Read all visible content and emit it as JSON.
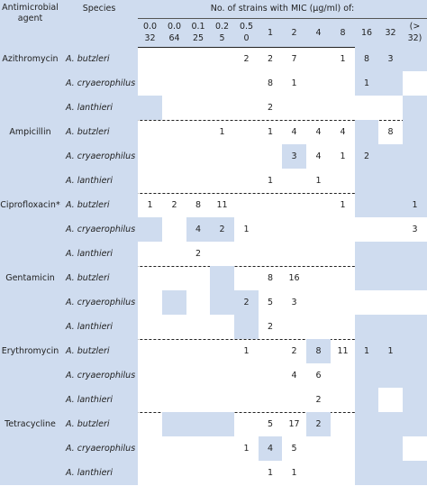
{
  "header": {
    "agent": "Antimicrobial\nagent",
    "species": "Species",
    "mic_title": "No. of strains with MIC (μg/ml) of:",
    "columns": [
      "0.0\n32",
      "0.0\n64",
      "0.1\n25",
      "0.2\n5",
      "0.5\n0",
      "1",
      "2",
      "4",
      "8",
      "16",
      "32",
      "(>\n32)"
    ]
  },
  "groups": [
    {
      "agent": "Azithromycin",
      "rows": [
        {
          "species": "A. butzleri",
          "values": [
            "",
            "",
            "",
            "",
            "2",
            "2",
            "7",
            "",
            "1",
            "8",
            "3",
            ""
          ],
          "shaded": [
            false,
            false,
            false,
            false,
            false,
            false,
            false,
            false,
            false,
            true,
            true,
            true
          ]
        },
        {
          "species": "A. cryaerophilus",
          "values": [
            "",
            "",
            "",
            "",
            "",
            "8",
            "1",
            "",
            "",
            "1",
            "",
            ""
          ],
          "shaded": [
            false,
            false,
            false,
            false,
            false,
            false,
            false,
            false,
            false,
            true,
            true,
            false
          ]
        },
        {
          "species": "A. lanthieri",
          "values": [
            "",
            "",
            "",
            "",
            "",
            "2",
            "",
            "",
            "",
            "",
            "",
            ""
          ],
          "shaded": [
            true,
            false,
            false,
            false,
            false,
            false,
            false,
            false,
            false,
            false,
            false,
            true
          ]
        }
      ]
    },
    {
      "agent": "Ampicillin",
      "rows": [
        {
          "species": "A. butzleri",
          "values": [
            "",
            "",
            "",
            "1",
            "",
            "1",
            "4",
            "4",
            "4",
            "",
            "8",
            ""
          ],
          "shaded": [
            false,
            false,
            false,
            false,
            false,
            false,
            false,
            false,
            false,
            true,
            false,
            true
          ]
        },
        {
          "species": "A. cryaerophilus",
          "values": [
            "",
            "",
            "",
            "",
            "",
            "",
            "3",
            "4",
            "1",
            "2",
            "",
            ""
          ],
          "shaded": [
            false,
            false,
            false,
            false,
            false,
            false,
            true,
            false,
            false,
            true,
            true,
            true
          ]
        },
        {
          "species": "A. lanthieri",
          "values": [
            "",
            "",
            "",
            "",
            "",
            "1",
            "",
            "1",
            "",
            "",
            "",
            ""
          ],
          "shaded": [
            false,
            false,
            false,
            false,
            false,
            false,
            false,
            false,
            false,
            true,
            true,
            true
          ]
        }
      ]
    },
    {
      "agent": "Ciprofloxacin*",
      "rows": [
        {
          "species": "A. butzleri",
          "values": [
            "1",
            "2",
            "8",
            "11",
            "",
            "",
            "",
            "",
            "1",
            "",
            "",
            "1"
          ],
          "shaded": [
            false,
            false,
            false,
            false,
            false,
            false,
            false,
            false,
            false,
            true,
            true,
            true
          ]
        },
        {
          "species": "A. cryaerophilus",
          "values": [
            "",
            "",
            "4",
            "2",
            "1",
            "",
            "",
            "",
            "",
            "",
            "",
            "3"
          ],
          "shaded": [
            true,
            false,
            true,
            true,
            false,
            false,
            false,
            false,
            false,
            false,
            false,
            false
          ]
        },
        {
          "species": "A. lanthieri",
          "values": [
            "",
            "",
            "2",
            "",
            "",
            "",
            "",
            "",
            "",
            "",
            "",
            ""
          ],
          "shaded": [
            false,
            false,
            false,
            false,
            false,
            false,
            false,
            false,
            false,
            true,
            true,
            true
          ]
        }
      ]
    },
    {
      "agent": "Gentamicin",
      "rows": [
        {
          "species": "A. butzleri",
          "values": [
            "",
            "",
            "",
            "",
            "",
            "8",
            "16",
            "",
            "",
            "",
            "",
            ""
          ],
          "shaded": [
            false,
            false,
            false,
            true,
            false,
            false,
            false,
            false,
            false,
            true,
            true,
            true
          ]
        },
        {
          "species": "A. cryaerophilus",
          "values": [
            "",
            "",
            "",
            "",
            "2",
            "5",
            "3",
            "",
            "",
            "",
            "",
            ""
          ],
          "shaded": [
            false,
            true,
            false,
            true,
            true,
            false,
            false,
            false,
            false,
            false,
            false,
            false
          ]
        },
        {
          "species": "A. lanthieri",
          "values": [
            "",
            "",
            "",
            "",
            "",
            "2",
            "",
            "",
            "",
            "",
            "",
            ""
          ],
          "shaded": [
            false,
            false,
            false,
            false,
            true,
            false,
            false,
            false,
            false,
            true,
            true,
            true
          ]
        }
      ]
    },
    {
      "agent": "Erythromycin",
      "rows": [
        {
          "species": "A. butzleri",
          "values": [
            "",
            "",
            "",
            "",
            "1",
            "",
            "2",
            "8",
            "11",
            "1",
            "1",
            ""
          ],
          "shaded": [
            false,
            false,
            false,
            false,
            false,
            false,
            false,
            true,
            false,
            true,
            true,
            true
          ]
        },
        {
          "species": "A. cryaerophilus",
          "values": [
            "",
            "",
            "",
            "",
            "",
            "",
            "4",
            "6",
            "",
            "",
            "",
            ""
          ],
          "shaded": [
            false,
            false,
            false,
            false,
            false,
            false,
            false,
            false,
            false,
            true,
            true,
            true
          ]
        },
        {
          "species": "A. lanthieri",
          "values": [
            "",
            "",
            "",
            "",
            "",
            "",
            "",
            "2",
            "",
            "",
            "",
            ""
          ],
          "shaded": [
            false,
            false,
            false,
            false,
            false,
            false,
            false,
            false,
            false,
            true,
            false,
            true
          ]
        }
      ]
    },
    {
      "agent": "Tetracycline",
      "rows": [
        {
          "species": "A. butzleri",
          "values": [
            "",
            "",
            "",
            "",
            "",
            "5",
            "17",
            "2",
            "",
            "",
            "",
            ""
          ],
          "shaded": [
            false,
            true,
            true,
            true,
            false,
            false,
            false,
            true,
            false,
            true,
            true,
            true
          ]
        },
        {
          "species": "A. cryaerophilus",
          "values": [
            "",
            "",
            "",
            "",
            "1",
            "4",
            "5",
            "",
            "",
            "",
            "",
            ""
          ],
          "shaded": [
            false,
            false,
            false,
            false,
            false,
            true,
            false,
            false,
            false,
            true,
            true,
            false
          ]
        },
        {
          "species": "A. lanthieri",
          "values": [
            "",
            "",
            "",
            "",
            "",
            "1",
            "1",
            "",
            "",
            "",
            "",
            ""
          ],
          "shaded": [
            false,
            false,
            false,
            false,
            false,
            false,
            false,
            false,
            false,
            true,
            true,
            true
          ]
        }
      ]
    }
  ],
  "colors": {
    "shade": "#cfdcef",
    "text": "#222222"
  }
}
